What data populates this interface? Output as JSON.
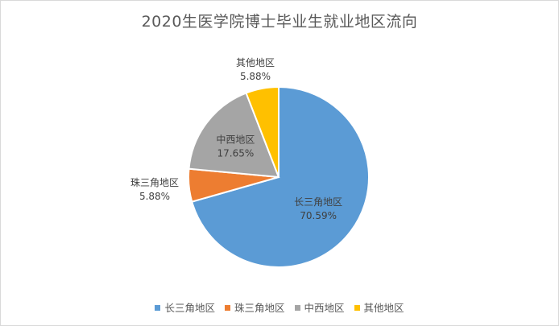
{
  "chart_data": {
    "type": "pie",
    "title": "2020生医学院博士毕业生就业地区流向",
    "categories": [
      "长三角地区",
      "珠三角地区",
      "中西地区",
      "其他地区"
    ],
    "values": [
      70.59,
      5.88,
      17.65,
      5.88
    ],
    "value_labels": [
      "70.59%",
      "5.88%",
      "17.65%",
      "5.88%"
    ],
    "colors": [
      "#5b9bd5",
      "#ed7d31",
      "#a5a5a5",
      "#ffc000"
    ],
    "legend_position": "bottom",
    "start_angle_deg": 0,
    "direction": "clockwise"
  }
}
